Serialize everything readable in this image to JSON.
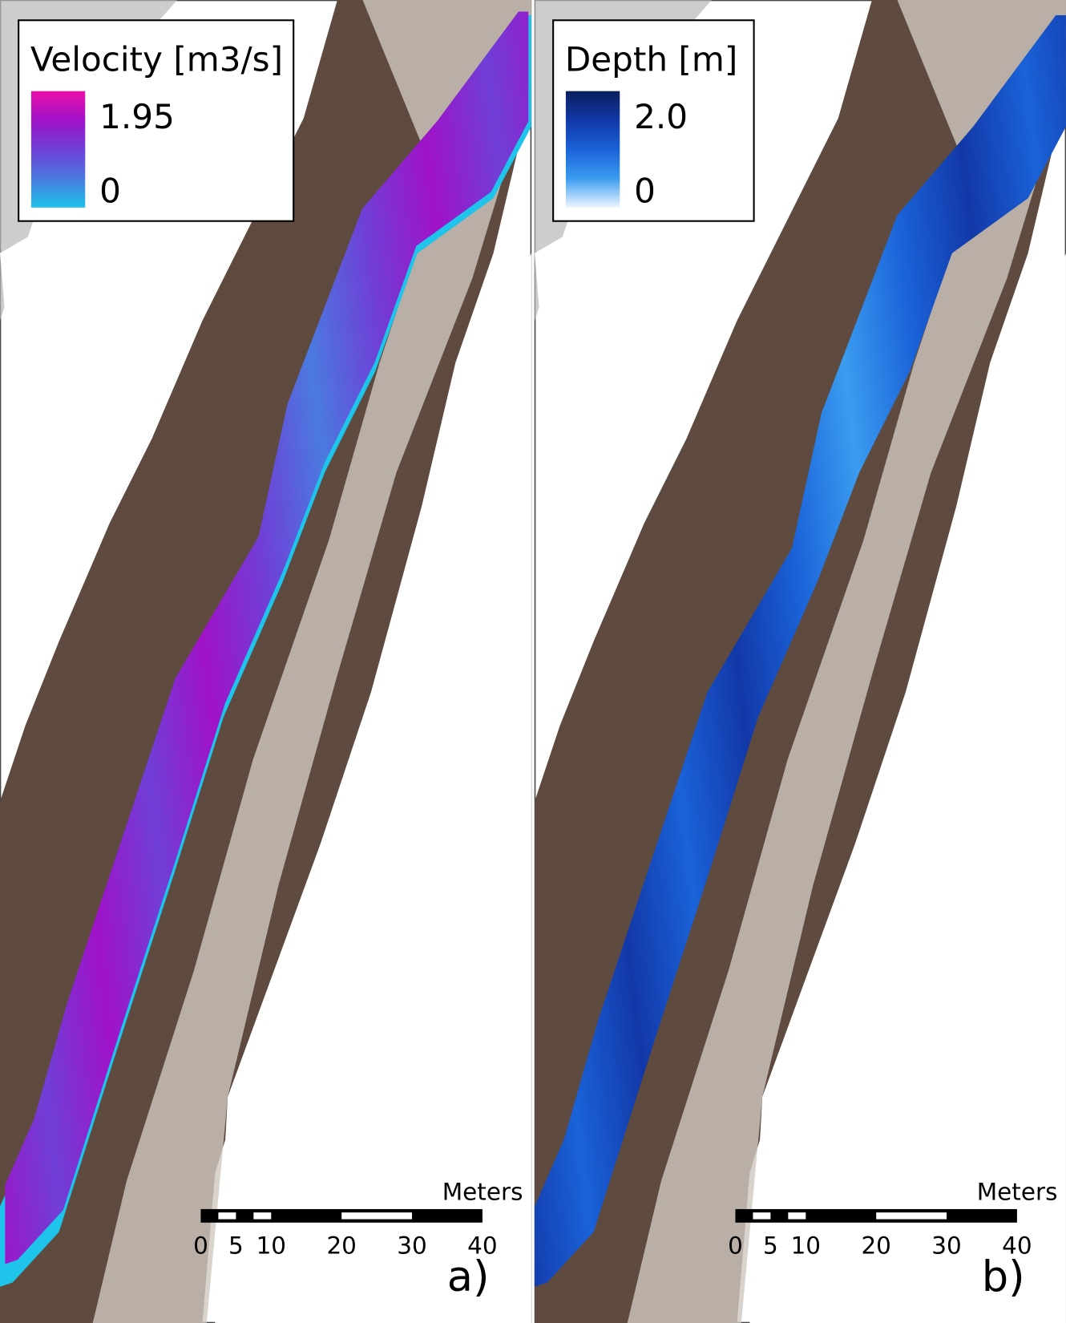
{
  "panels": [
    {
      "legend": {
        "title": "Velocity [m3/s]",
        "max": "1.95",
        "min": "0",
        "colors": [
          "#ea10a8",
          "#a012c8",
          "#6f3fd6",
          "#4a7ae0",
          "#1ec4ea"
        ]
      },
      "scale": {
        "unit": "Meters",
        "ticks": [
          0,
          5,
          10,
          20,
          30,
          40
        ]
      },
      "label": "a)"
    },
    {
      "legend": {
        "title": "Depth [m]",
        "max": "2.0",
        "min": "0",
        "colors": [
          "#0a1f5e",
          "#1238a8",
          "#1a62d8",
          "#3a9cf0",
          "#eef6ff"
        ]
      },
      "scale": {
        "unit": "Meters",
        "ticks": [
          0,
          5,
          10,
          20,
          30,
          40
        ]
      },
      "label": "b)"
    }
  ]
}
